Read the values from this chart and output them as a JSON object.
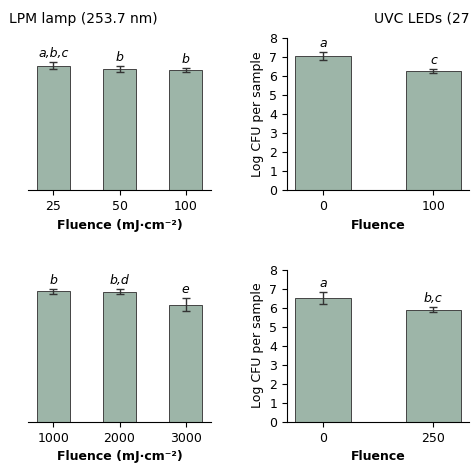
{
  "top_left": {
    "categories": [
      "25",
      "50",
      "100"
    ],
    "values": [
      6.55,
      6.38,
      6.3
    ],
    "errors": [
      0.18,
      0.15,
      0.1
    ],
    "labels": [
      "a,b,c",
      "b",
      "b"
    ],
    "xlabel": "Fluence (mJ·cm⁻²)",
    "ylabel": "",
    "ylim": [
      0,
      8
    ],
    "yticks": [
      0,
      1,
      2,
      3,
      4,
      5,
      6,
      7,
      8
    ],
    "show_yaxis": false
  },
  "top_right": {
    "categories": [
      "0",
      "100"
    ],
    "values": [
      7.05,
      6.25
    ],
    "errors": [
      0.22,
      0.1
    ],
    "labels": [
      "a",
      "c"
    ],
    "xlabel": "Fluence",
    "ylabel": "Log CFU per sample",
    "ylim": [
      0,
      8
    ],
    "yticks": [
      0,
      1,
      2,
      3,
      4,
      5,
      6,
      7,
      8
    ],
    "show_yaxis": true
  },
  "bottom_left": {
    "categories": [
      "1000",
      "2000",
      "3000"
    ],
    "values": [
      6.85,
      6.82,
      6.15
    ],
    "errors": [
      0.12,
      0.13,
      0.35
    ],
    "labels": [
      "b",
      "b,d",
      "e"
    ],
    "xlabel": "Fluence (mJ·cm⁻²)",
    "ylabel": "",
    "ylim": [
      0,
      8
    ],
    "yticks": [
      0,
      1,
      2,
      3,
      4,
      5,
      6,
      7,
      8
    ],
    "show_yaxis": false
  },
  "bottom_right": {
    "categories": [
      "0",
      "250"
    ],
    "values": [
      6.5,
      5.88
    ],
    "errors": [
      0.3,
      0.13
    ],
    "labels": [
      "a",
      "b,c"
    ],
    "xlabel": "Fluence",
    "ylabel": "Log CFU per sample",
    "ylim": [
      0,
      8
    ],
    "yticks": [
      0,
      1,
      2,
      3,
      4,
      5,
      6,
      7,
      8
    ],
    "show_yaxis": true
  },
  "title_left": "LPM lamp (253.7 nm)",
  "title_right": "UVC LEDs (27",
  "bar_color": "#9db5a8",
  "bar_edge_color": "#444444",
  "error_color": "#333333",
  "background_color": "#ffffff",
  "title_fontsize": 10,
  "label_fontsize": 9,
  "tick_fontsize": 9,
  "stat_label_fontsize": 9
}
